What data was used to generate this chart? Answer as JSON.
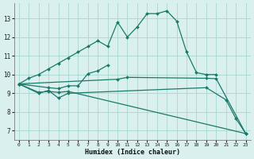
{
  "bg_color": "#daf0ee",
  "grid_color": "#a8d8d0",
  "line_color": "#1a7a6a",
  "xlabel": "Humidex (Indice chaleur)",
  "xlim": [
    -0.5,
    23.5
  ],
  "ylim": [
    6.5,
    13.8
  ],
  "yticks": [
    7,
    8,
    9,
    10,
    11,
    12,
    13
  ],
  "xticks": [
    0,
    1,
    2,
    3,
    4,
    5,
    6,
    7,
    8,
    9,
    10,
    11,
    12,
    13,
    14,
    15,
    16,
    17,
    18,
    19,
    20,
    21,
    22,
    23
  ],
  "line1_x": [
    0,
    1,
    2,
    3,
    4,
    5,
    6,
    7,
    8,
    9,
    10,
    11,
    12,
    13,
    14,
    15,
    16,
    17,
    18,
    19,
    20
  ],
  "line1_y": [
    9.5,
    9.8,
    10.0,
    10.3,
    10.6,
    10.9,
    11.2,
    11.5,
    11.8,
    11.5,
    12.8,
    12.0,
    12.55,
    13.25,
    13.25,
    13.4,
    12.85,
    11.2,
    10.1,
    10.0,
    10.0
  ],
  "line2_x": [
    0,
    3,
    4,
    5,
    6,
    7,
    8,
    9
  ],
  "line2_y": [
    9.5,
    9.3,
    9.25,
    9.4,
    9.4,
    10.05,
    10.2,
    10.5
  ],
  "line3_x": [
    0,
    2,
    3,
    4,
    5,
    19,
    21,
    22,
    23
  ],
  "line3_y": [
    9.5,
    9.0,
    9.15,
    8.75,
    9.0,
    9.3,
    8.65,
    7.65,
    6.85
  ],
  "line4_x": [
    0,
    2,
    3,
    4,
    5,
    23
  ],
  "line4_y": [
    9.5,
    9.05,
    9.1,
    9.05,
    9.1,
    6.85
  ],
  "line5_x": [
    0,
    10,
    11,
    19,
    20,
    23
  ],
  "line5_y": [
    9.5,
    9.75,
    9.85,
    9.8,
    9.78,
    6.85
  ]
}
